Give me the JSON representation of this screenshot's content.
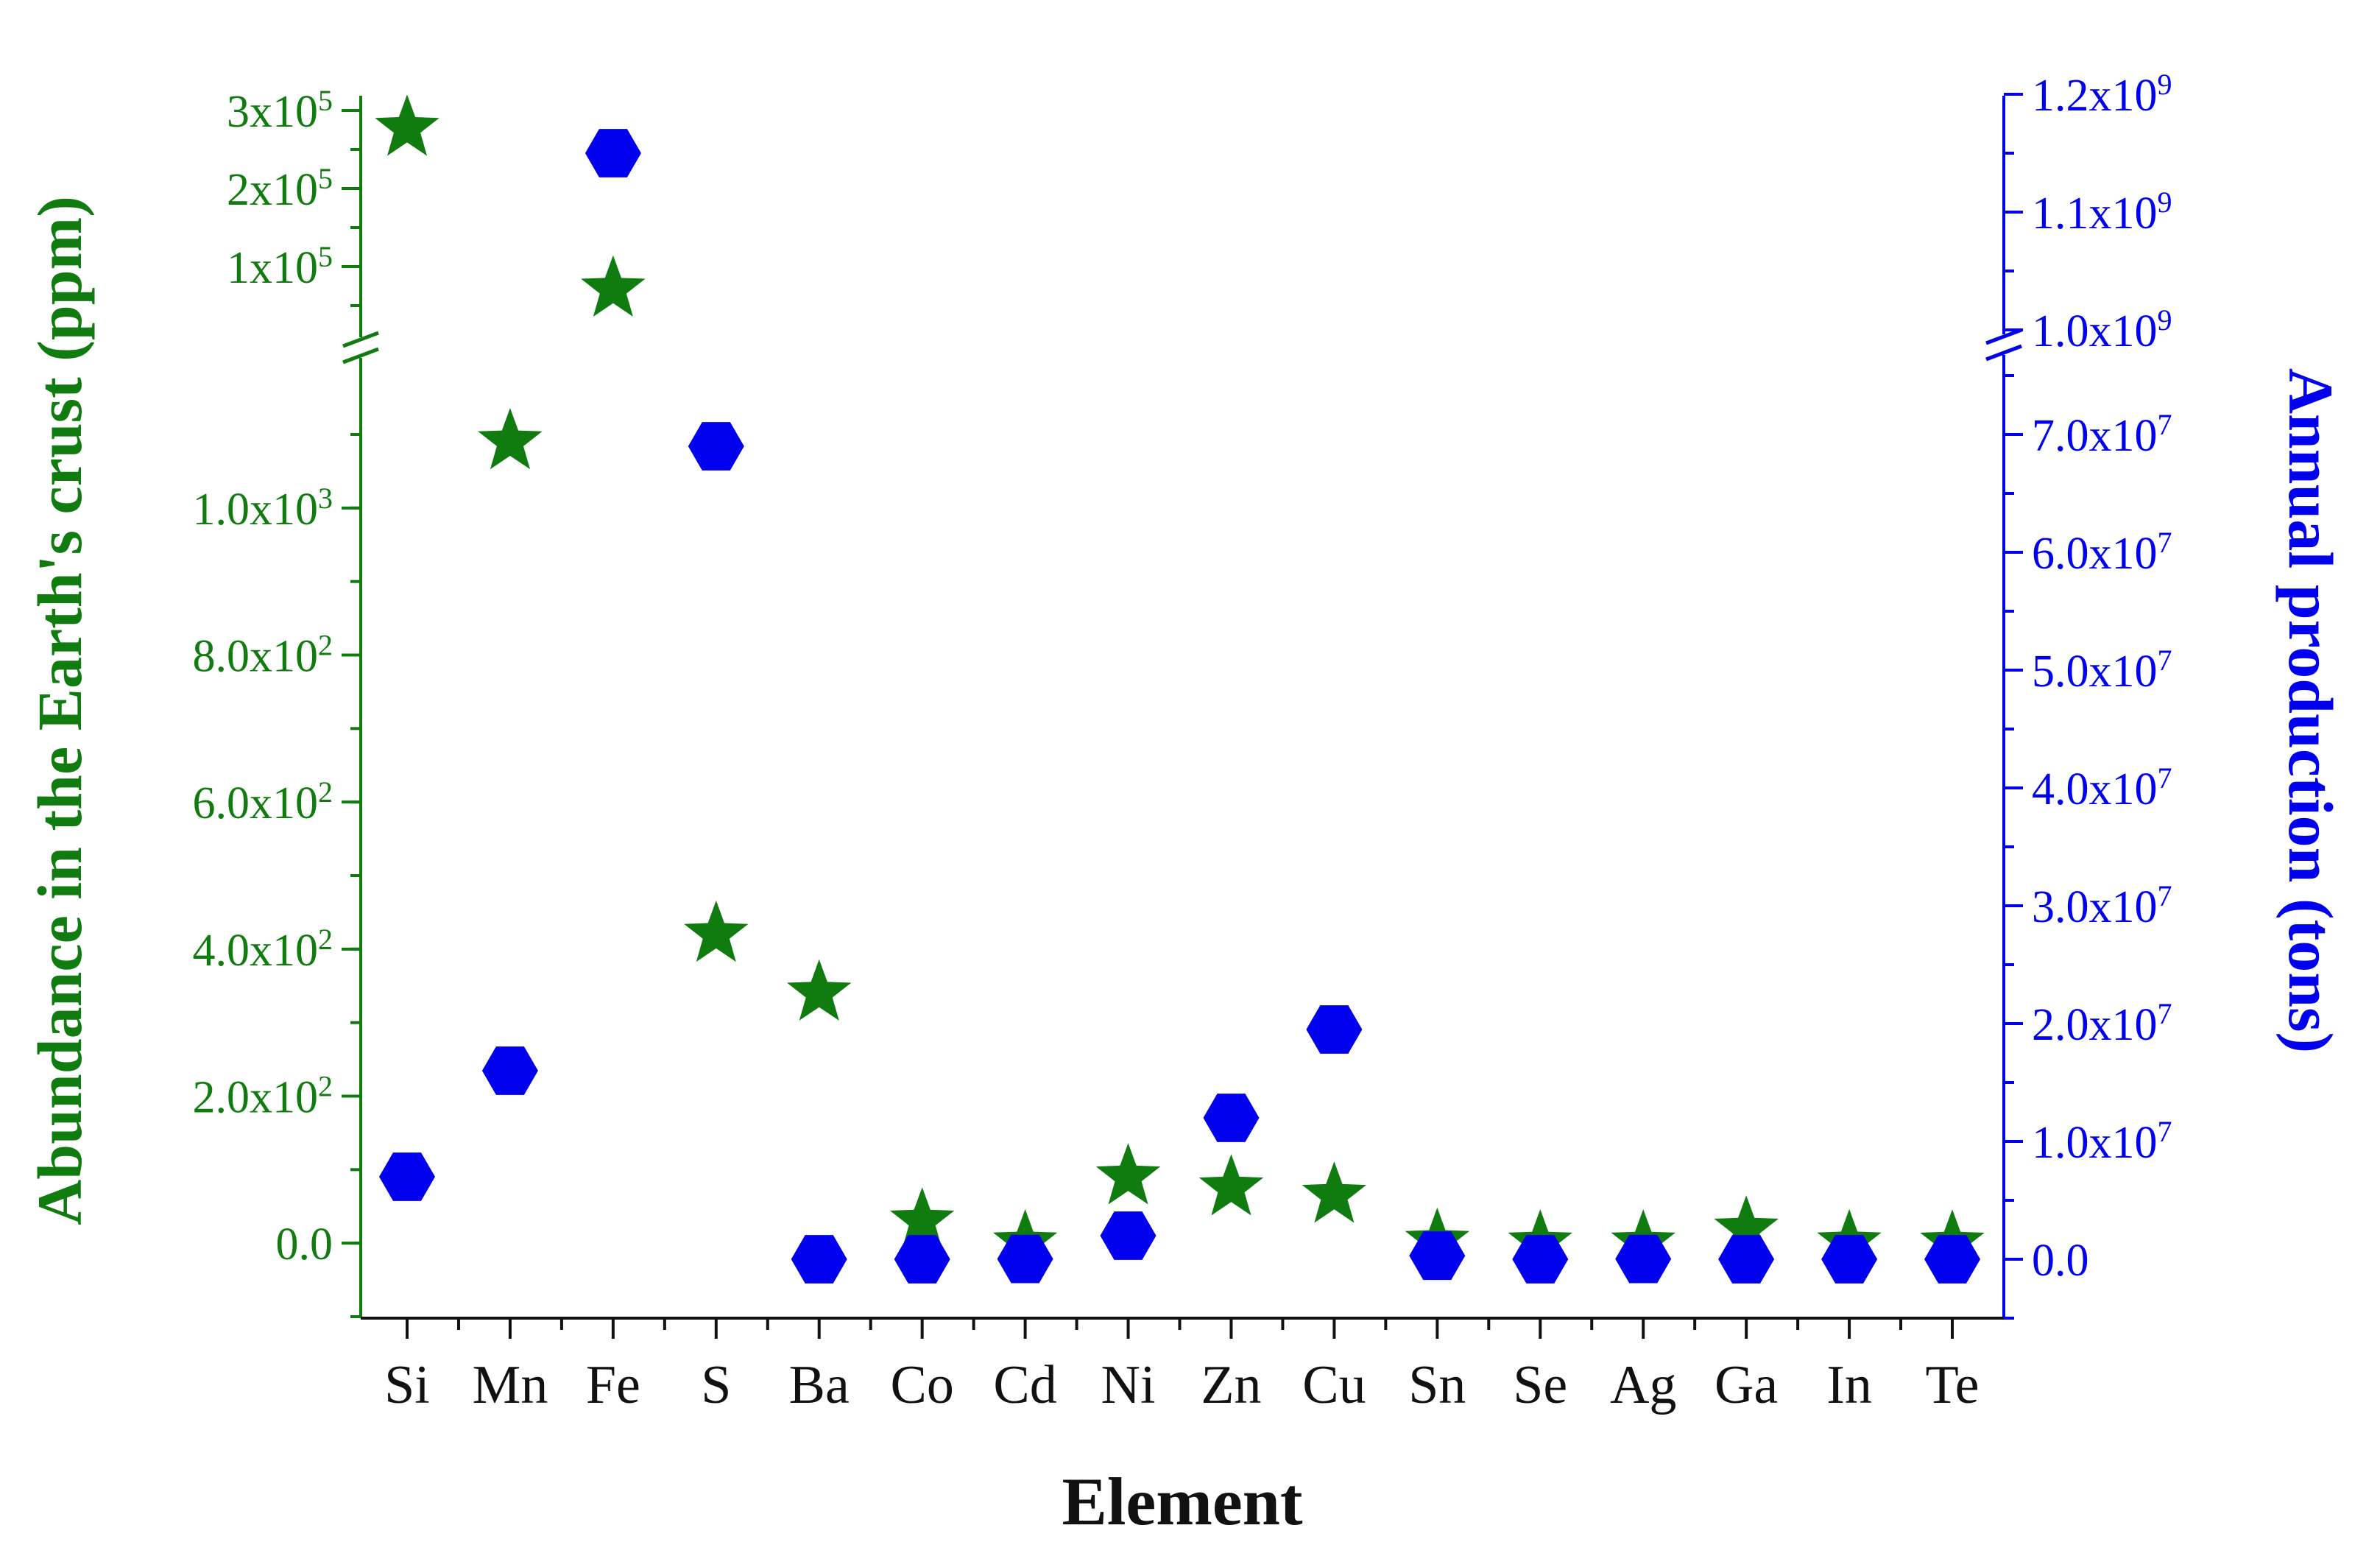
{
  "chart_data": {
    "type": "scatter",
    "xlabel": "Element",
    "categories": [
      "Si",
      "Mn",
      "Fe",
      "S",
      "Ba",
      "Co",
      "Cd",
      "Ni",
      "Zn",
      "Cu",
      "Sn",
      "Se",
      "Ag",
      "Ga",
      "In",
      "Te"
    ],
    "left_axis": {
      "label": "Abundance in the Earth's crust (ppm)",
      "color": "#107c10",
      "broken": true,
      "lower_range": [
        -100,
        1100
      ],
      "lower_ticks": [
        {
          "value": 0,
          "label": "0.0"
        },
        {
          "value": 200,
          "label": "2.0x10",
          "exp": "2"
        },
        {
          "value": 400,
          "label": "4.0x10",
          "exp": "2"
        },
        {
          "value": 600,
          "label": "6.0x10",
          "exp": "2"
        },
        {
          "value": 800,
          "label": "8.0x10",
          "exp": "2"
        },
        {
          "value": 1000,
          "label": "1.0x10",
          "exp": "3"
        }
      ],
      "upper_range": [
        0,
        300000
      ],
      "upper_ticks": [
        {
          "value": 100000,
          "label": "1x10",
          "exp": "5"
        },
        {
          "value": 200000,
          "label": "2x10",
          "exp": "5"
        },
        {
          "value": 300000,
          "label": "3x10",
          "exp": "5"
        }
      ]
    },
    "right_axis": {
      "label": "Annual production (tons)",
      "color": "#0000ee",
      "broken": true,
      "lower_range": [
        -5000000,
        75000000
      ],
      "lower_ticks": [
        {
          "value": 0,
          "label": "0.0"
        },
        {
          "value": 10000000,
          "label": "1.0x10",
          "exp": "7"
        },
        {
          "value": 20000000,
          "label": "2.0x10",
          "exp": "7"
        },
        {
          "value": 30000000,
          "label": "3.0x10",
          "exp": "7"
        },
        {
          "value": 40000000,
          "label": "4.0x10",
          "exp": "7"
        },
        {
          "value": 50000000,
          "label": "5.0x10",
          "exp": "7"
        },
        {
          "value": 60000000,
          "label": "6.0x10",
          "exp": "7"
        },
        {
          "value": 70000000,
          "label": "7.0x10",
          "exp": "7"
        }
      ],
      "upper_range": [
        1000000000,
        1200000000
      ],
      "upper_ticks": [
        {
          "value": 1000000000,
          "label": "1.0x10",
          "exp": "9"
        },
        {
          "value": 1100000000,
          "label": "1.1x10",
          "exp": "9"
        },
        {
          "value": 1200000000,
          "label": "1.2x10",
          "exp": "9"
        }
      ]
    },
    "series": [
      {
        "axis": "left",
        "marker": "star",
        "color": "#107c10",
        "values": [
          277000,
          1090,
          71000,
          420,
          340,
          30,
          0.15,
          90,
          75,
          65,
          2.3,
          0.05,
          0.075,
          19,
          0.25,
          0.001
        ]
      },
      {
        "axis": "right",
        "marker": "hexagon",
        "color": "#0000ee",
        "values": [
          7000000,
          16000000,
          1150000000,
          69000000,
          0,
          0,
          25000,
          2000000,
          12000000,
          19500000,
          300000,
          2000,
          25000,
          300,
          700,
          400
        ]
      }
    ]
  }
}
